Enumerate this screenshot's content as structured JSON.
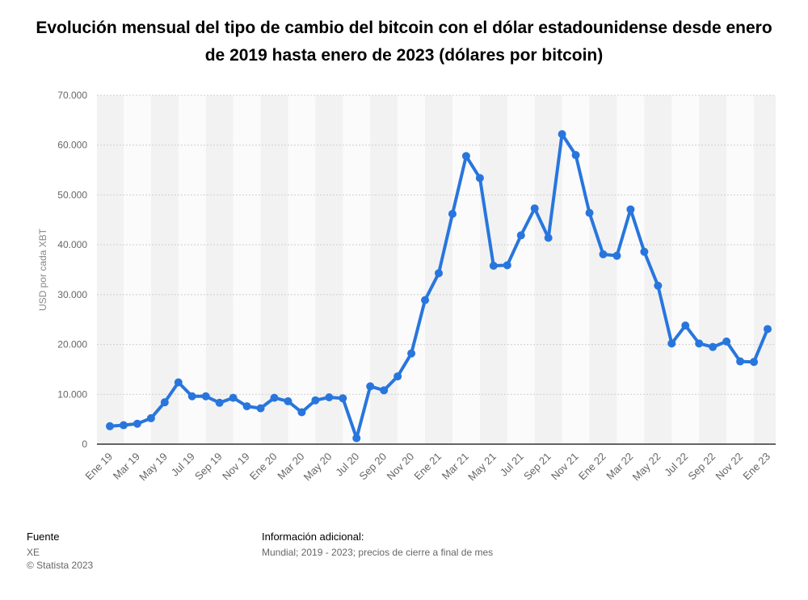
{
  "title": "Evolución mensual del tipo de cambio del bitcoin con el dólar estadounidense desde enero de 2019 hasta enero de 2023 (dólares por bitcoin)",
  "footer": {
    "source_heading": "Fuente",
    "source_name": "XE",
    "copyright": "© Statista 2023",
    "additional_heading": "Información adicional:",
    "additional_text": "Mundial; 2019 - 2023; precios de cierre a final de mes"
  },
  "chart_data": {
    "type": "line",
    "title": "Evolución mensual del tipo de cambio del bitcoin con el dólar estadounidense desde enero de 2019 hasta enero de 2023 (dólares por bitcoin)",
    "xlabel": "",
    "ylabel": "USD por cada XBT",
    "ylim": [
      0,
      70000
    ],
    "yticks": [
      0,
      10000,
      20000,
      30000,
      40000,
      50000,
      60000,
      70000
    ],
    "ytick_labels": [
      "0",
      "10.000",
      "20.000",
      "30.000",
      "40.000",
      "50.000",
      "60.000",
      "70.000"
    ],
    "grid": true,
    "legend": "none",
    "color": "#2876dd",
    "categories": [
      "Ene 19",
      "Feb 19",
      "Mar 19",
      "Abr 19",
      "May 19",
      "Jun 19",
      "Jul 19",
      "Ago 19",
      "Sep 19",
      "Oct 19",
      "Nov 19",
      "Dic 19",
      "Ene 20",
      "Feb 20",
      "Mar 20",
      "Abr 20",
      "May 20",
      "Jun 20",
      "Jul 20",
      "Ago 20",
      "Sep 20",
      "Oct 20",
      "Nov 20",
      "Dic 20",
      "Ene 21",
      "Feb 21",
      "Mar 21",
      "Abr 21",
      "May 21",
      "Jun 21",
      "Jul 21",
      "Ago 21",
      "Sep 21",
      "Oct 21",
      "Nov 21",
      "Dic 21",
      "Ene 22",
      "Feb 22",
      "Mar 22",
      "Abr 22",
      "May 22",
      "Jun 22",
      "Jul 22",
      "Ago 22",
      "Sep 22",
      "Oct 22",
      "Nov 22",
      "Dic 22",
      "Ene 23"
    ],
    "tick_labels": [
      "Ene 19",
      "Mar 19",
      "May 19",
      "Jul 19",
      "Sep 19",
      "Nov 19",
      "Ene 20",
      "Mar 20",
      "May 20",
      "Jul 20",
      "Sep 20",
      "Nov 20",
      "Ene 21",
      "Mar 21",
      "May 21",
      "Jul 21",
      "Sep 21",
      "Nov 21",
      "Ene 22",
      "Mar 22",
      "May 22",
      "Jul 22",
      "Sep 22",
      "Nov 22",
      "Ene 23"
    ],
    "series": [
      {
        "values": [
          3600,
          3800,
          4100,
          5200,
          8400,
          12400,
          9600,
          9600,
          8300,
          9300,
          7600,
          7200,
          9300,
          8600,
          6400,
          8800,
          9400,
          9200,
          1200,
          11600,
          10800,
          13600,
          18200,
          28900,
          34300,
          46200,
          57800,
          53400,
          35800,
          35900,
          41900,
          47300,
          41400,
          62200,
          58000,
          46400,
          38100,
          37800,
          47100,
          38600,
          31800,
          20200,
          23800,
          20200,
          19500,
          20600,
          16600,
          16500,
          23100
        ]
      }
    ]
  }
}
